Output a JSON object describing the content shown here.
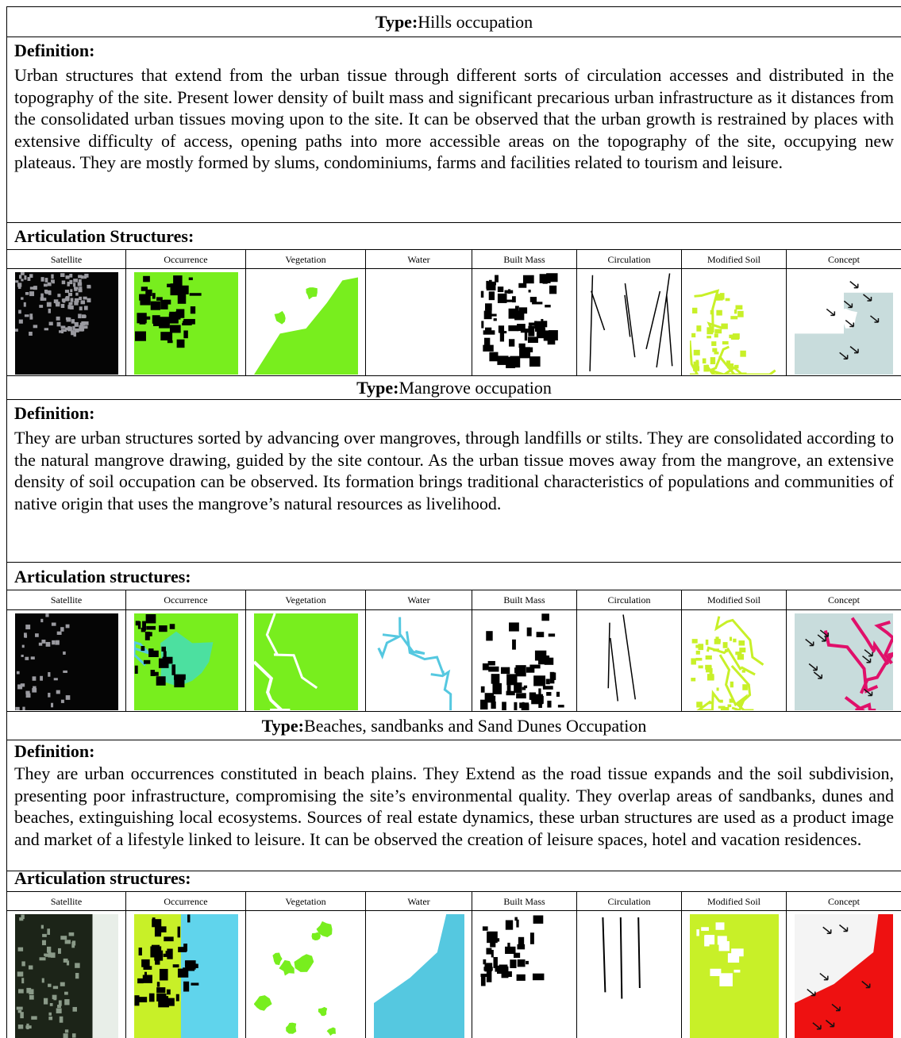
{
  "sections": [
    {
      "type_label": "Type:",
      "type_value": "Hills occupation",
      "definition_label": "Definition:",
      "definition": "Urban structures that extend from the urban tissue through different sorts of circulation accesses and distributed in the topography of the site. Present lower density of built mass and significant precarious urban infrastructure as it distances from the consolidated urban tissues moving upon to the site. It can be observed that the urban growth is restrained by places with extensive difficulty of access, opening paths into more accessible areas on the topography of the site, occupying new plateaus. They are mostly formed by slums, condominiums, farms and facilities related to tourism and leisure.",
      "articulation_label": "Articulation Structures:",
      "columns": [
        "Satellite",
        "Occurrence",
        "Vegetation",
        "Water",
        "Built Mass",
        "Circulation",
        "Modified Soil",
        "Concept"
      ]
    },
    {
      "type_label": "Type:",
      "type_value": "Mangrove occupation",
      "definition_label": "Definition:",
      "definition": "They are urban structures sorted by advancing over mangroves, through landfills or stilts. They are consolidated according to the natural mangrove drawing, guided by the site contour. As the urban tissue moves away from the mangrove, an extensive density of soil occupation can be observed. Its formation brings traditional characteristics of populations and communities of native origin that uses the mangrove’s natural resources as livelihood.",
      "articulation_label": "Articulation structures:",
      "columns": [
        "Satellite",
        "Occurrence",
        "Vegetation",
        "Water",
        "Built Mass",
        "Circulation",
        "Modified Soil",
        "Concept"
      ]
    },
    {
      "type_label": "Type:",
      "type_value": "Beaches, sandbanks and Sand Dunes Occupation",
      "definition_label": "Definition:",
      "definition": "They are urban occurrences constituted in beach plains. They Extend as the road tissue expands and the soil subdivision, presenting poor infrastructure, compromising the site’s environmental quality. They overlap areas of sandbanks, dunes and beaches, extinguishing local ecosystems. Sources of real estate dynamics, these urban structures are used as a product image and market of a lifestyle linked to leisure. It can be observed the creation of leisure spaces, hotel and vacation residences.",
      "articulation_label": "Articulation structures:",
      "columns": [
        "Satellite",
        "Occurrence",
        "Vegetation",
        "Water",
        "Built Mass",
        "Circulation",
        "Modified Soil",
        "Concept"
      ]
    }
  ]
}
